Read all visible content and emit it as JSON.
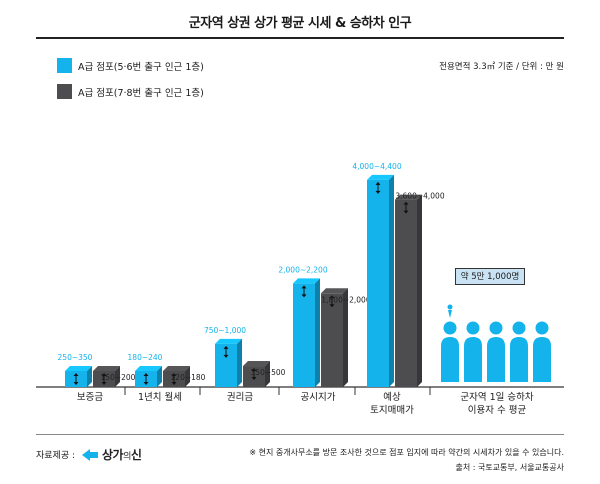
{
  "title": "군자역 상권 상가 평균 시세 & 승하차 인구",
  "unit_note": "전용면적 3.3㎡ 기준 / 단위 : 만 원",
  "colors": {
    "series_a": "#14b3ec",
    "series_b": "#4d4d4f",
    "callout_bg": "#c9e3f5"
  },
  "chart_data": {
    "type": "bar",
    "categories": [
      "보증금",
      "1년치 월세",
      "권리금",
      "공시지가",
      "예상\n토지매매가"
    ],
    "series": [
      {
        "name": "A급 점포(5·6번 출구 인근 1층)",
        "labels": [
          "250~350",
          "180~240",
          "750~1,000",
          "2,000~2,200",
          "4,000~4,400"
        ]
      },
      {
        "name": "A급 점포(7·8번 출구 인근 1층)",
        "labels": [
          "150~200",
          "120~180",
          "350~500",
          "1,800~2,000",
          "3,600~4,000"
        ]
      }
    ],
    "extra_category": {
      "label": "군자역 1일 승하차\n이용자 수 평균",
      "callout": "약 5만 1,000명"
    }
  },
  "footer": {
    "source_label": "자료제공 :",
    "logo_text": "상가",
    "logo_small": "의",
    "logo_tail": "신",
    "footnote": "※ 현지 중개사무소를 방문 조사한 것으로 점포 입지에 따라 약간의 시세차가 있을 수 있습니다.",
    "credit": "출처 : 국토교통부, 서울교통공사"
  }
}
